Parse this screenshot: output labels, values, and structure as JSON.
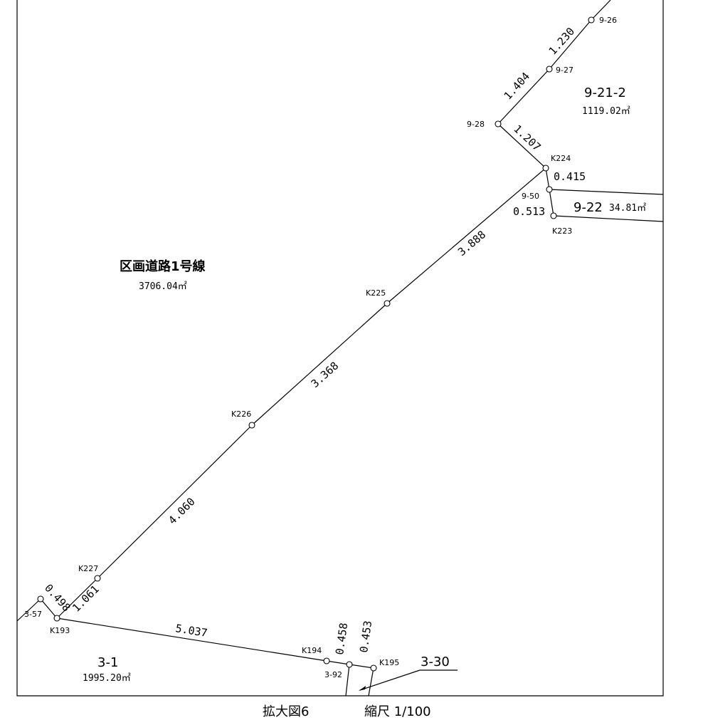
{
  "parcels": {
    "road": {
      "name": "区画道路1号線",
      "area": "3706.04㎡"
    },
    "p9_21_2": {
      "name": "9-21-2",
      "area": "1119.02㎡"
    },
    "p9_22": {
      "name": "9-22",
      "area": "34.81㎡"
    },
    "p3_1": {
      "name": "3-1",
      "area": "1995.20㎡"
    },
    "p3_30": {
      "name": "3-30"
    }
  },
  "points": {
    "p9_26": "9-26",
    "p9_27": "9-27",
    "p9_28": "9-28",
    "k224": "K224",
    "p9_50": "9-50",
    "k223": "K223",
    "k225": "K225",
    "k226": "K226",
    "k227": "K227",
    "p3_57": "3-57",
    "k193": "K193",
    "k194": "K194",
    "p3_92": "3-92",
    "k195": "K195"
  },
  "dimensions": {
    "d_1230": "1.230",
    "d_1404": "1.404",
    "d_1207": "1.207",
    "d_0415": "0.415",
    "d_0513": "0.513",
    "d_3888": "3.888",
    "d_3368": "3.368",
    "d_4060": "4.060",
    "d_1061": "1.061",
    "d_0498": "0.498",
    "d_5037": "5.037",
    "d_0458": "0.458",
    "d_0453": "0.453"
  },
  "caption": {
    "figure": "拡大図6",
    "scale": "縮尺 1/100"
  }
}
